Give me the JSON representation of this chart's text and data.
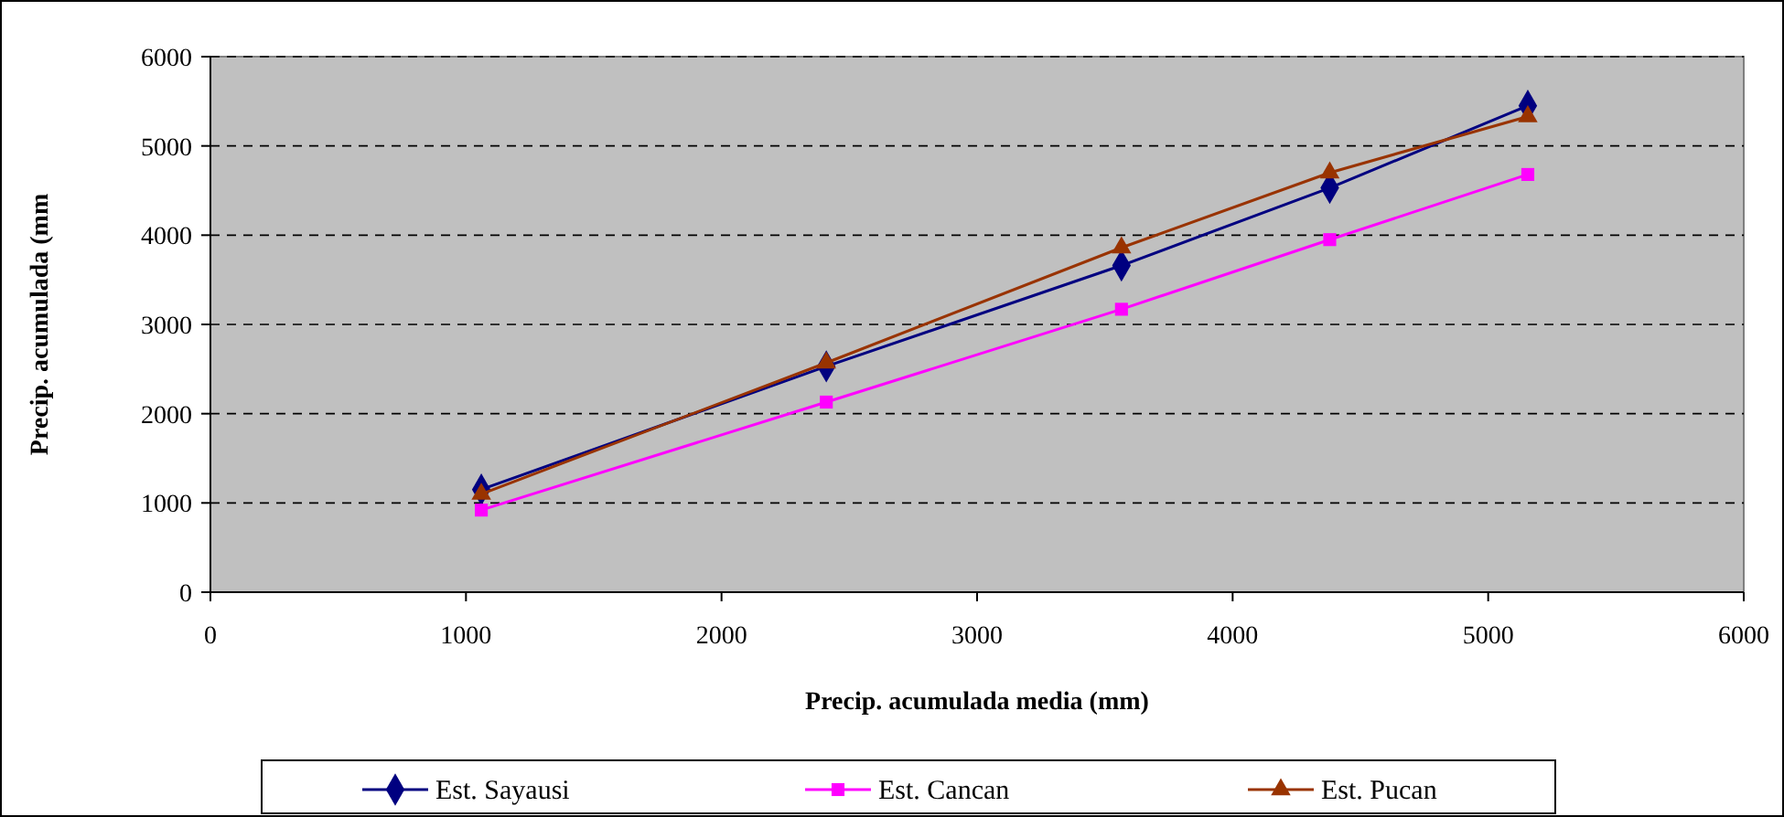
{
  "chart_data": {
    "type": "line",
    "xlabel": "Precip. acumulada media (mm)",
    "ylabel": "Precip. acumulada (mm",
    "x": [
      1060,
      2410,
      3565,
      4380,
      5155
    ],
    "series": [
      {
        "name": "Est. Sayausi",
        "color": "#000080",
        "marker": "diamond",
        "values": [
          1150,
          2530,
          3660,
          4530,
          5450
        ]
      },
      {
        "name": "Est. Cancan",
        "color": "#ff00ff",
        "marker": "square",
        "values": [
          920,
          2130,
          3170,
          3950,
          4680
        ]
      },
      {
        "name": "Est. Pucan",
        "color": "#993300",
        "marker": "triangle",
        "values": [
          1100,
          2570,
          3860,
          4700,
          5330
        ]
      }
    ],
    "xlim": [
      0,
      6000
    ],
    "xticks": [
      0,
      1000,
      2000,
      3000,
      4000,
      5000,
      6000
    ],
    "ylim": [
      0,
      6000
    ],
    "yticks": [
      0,
      1000,
      2000,
      3000,
      4000,
      5000,
      6000
    ],
    "grid": "y",
    "legend": "bottom"
  }
}
